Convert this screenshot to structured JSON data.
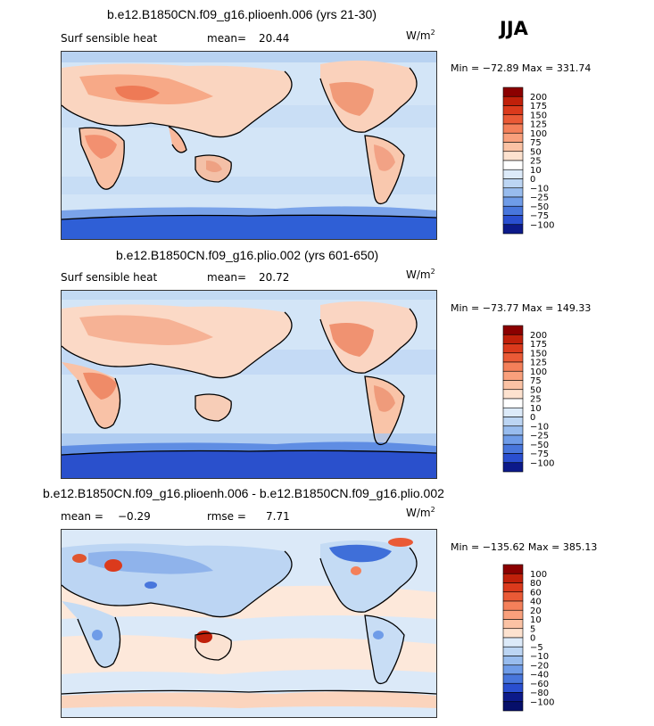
{
  "season": "JJA",
  "units_base": "W/m",
  "units_exp": "2",
  "panels": [
    {
      "title": "b.e12.B1850CN.f09_g16.plioenh.006 (yrs 21-30)",
      "left_label": "Surf sensible heat",
      "stat_label": "mean=",
      "stat_value": "20.44",
      "minmax": "Min = −72.89 Max = 331.74",
      "scale": "abs"
    },
    {
      "title": "b.e12.B1850CN.f09_g16.plio.002 (yrs 601-650)",
      "left_label": "Surf sensible heat",
      "stat_label": "mean=",
      "stat_value": "20.72",
      "minmax": "Min = −73.77 Max = 149.33",
      "scale": "abs"
    },
    {
      "title": "b.e12.B1850CN.f09_g16.plioenh.006 - b.e12.B1850CN.f09_g16.plio.002",
      "left_label": "mean =",
      "left_value": "−0.29",
      "stat_label": "rmse =",
      "stat_value": "7.71",
      "minmax": "Min = −135.62 Max = 385.13",
      "scale": "diff"
    }
  ],
  "colorbars": {
    "abs": {
      "labels": [
        "200",
        "175",
        "150",
        "125",
        "100",
        "75",
        "50",
        "25",
        "10",
        "0",
        "−10",
        "−25",
        "−50",
        "−75",
        "−100"
      ],
      "colors": [
        "#8b0000",
        "#c0200a",
        "#db3a1c",
        "#ea5a36",
        "#f4805a",
        "#f9a07c",
        "#fbc2a4",
        "#fde2cf",
        "#ffffff",
        "#dceaf9",
        "#bcd5f3",
        "#98bcee",
        "#6f9ce8",
        "#4876dc",
        "#2a4fd0",
        "#0c1a8a"
      ]
    },
    "diff": {
      "labels": [
        "100",
        "80",
        "60",
        "40",
        "20",
        "10",
        "5",
        "0",
        "−5",
        "−10",
        "−20",
        "−40",
        "−60",
        "−80",
        "−100"
      ],
      "colors": [
        "#8b0000",
        "#c0200a",
        "#db3a1c",
        "#ea5a36",
        "#f4805a",
        "#f9a07c",
        "#fbc2a4",
        "#fde2cf",
        "#dceaf9",
        "#bcd5f3",
        "#98bcee",
        "#6f9ce8",
        "#4876dc",
        "#2a4fd0",
        "#0c1a8a",
        "#060f6a"
      ]
    }
  }
}
